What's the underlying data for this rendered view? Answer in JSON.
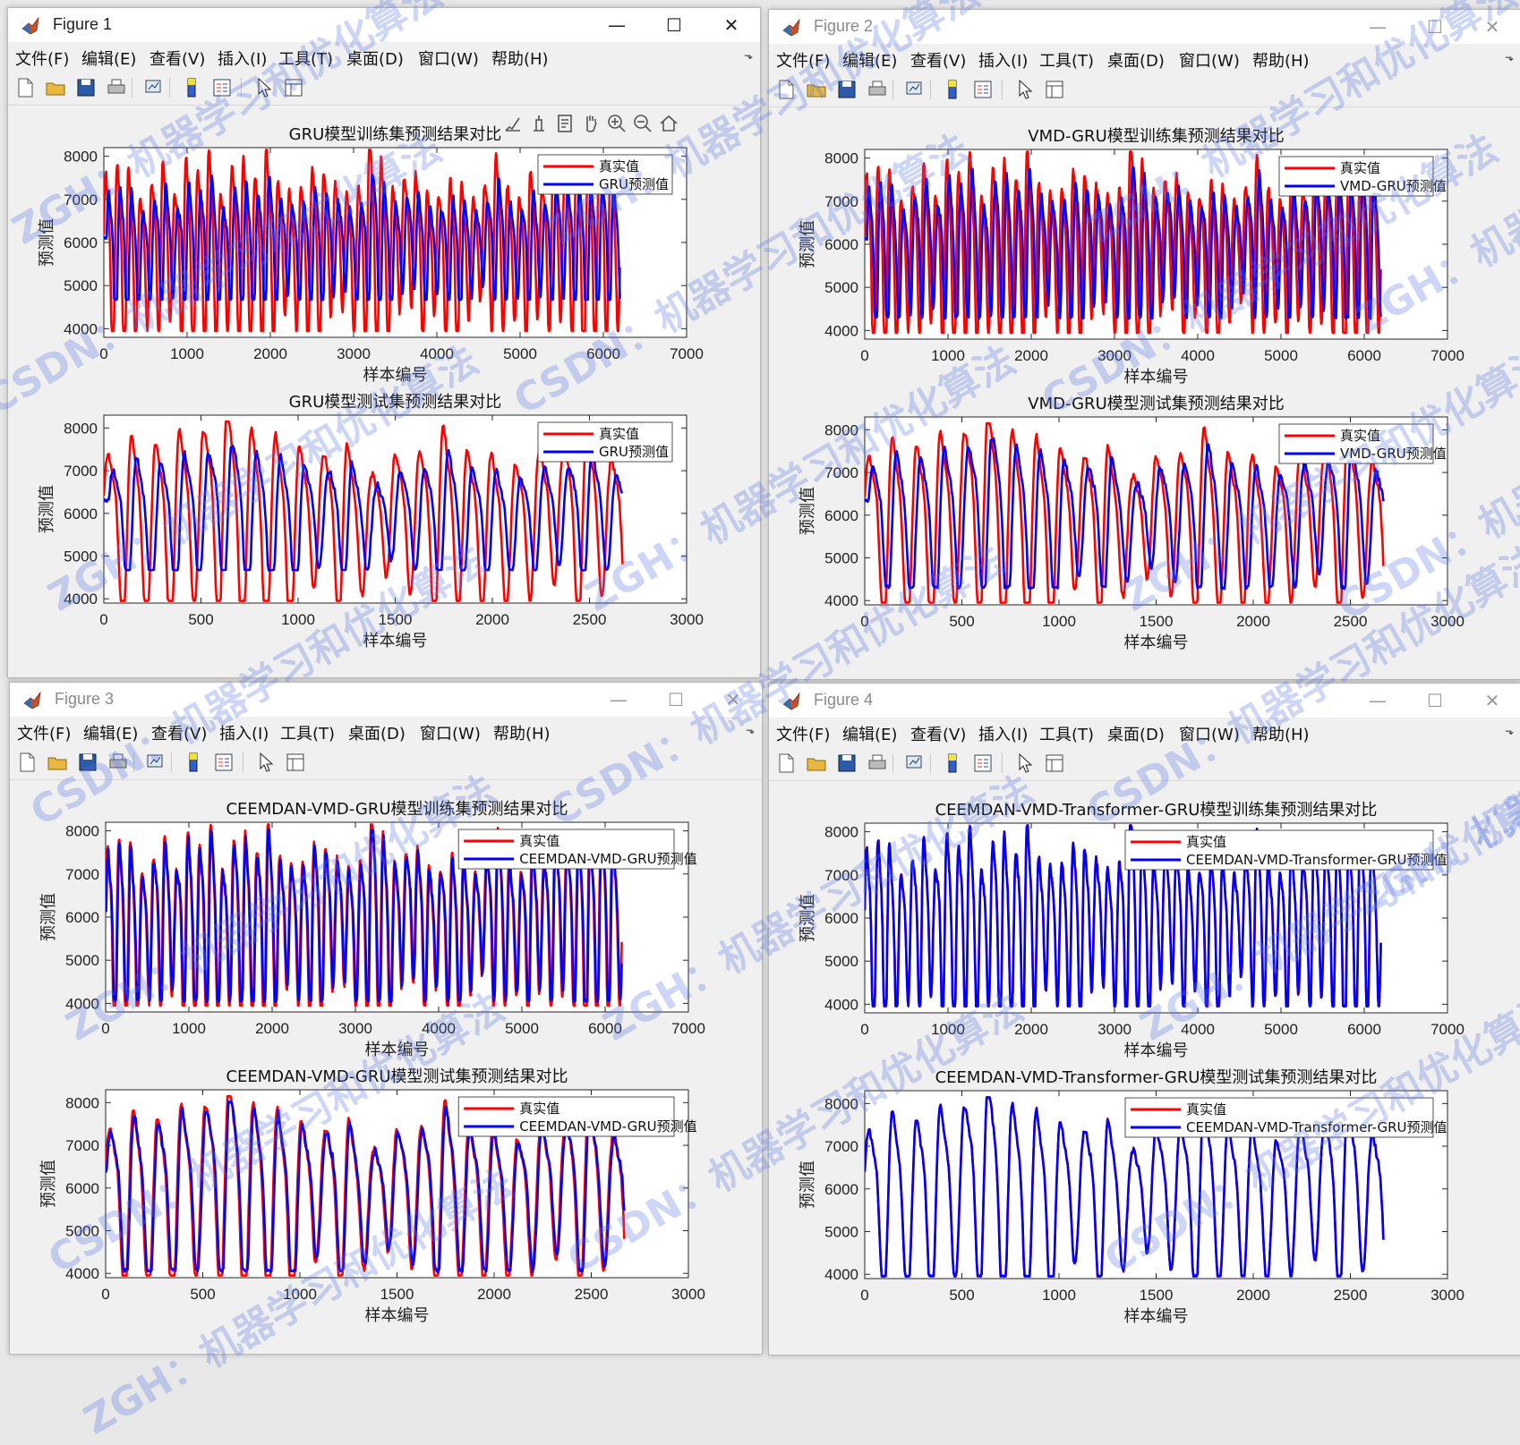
{
  "menu_labels": [
    "文件(F)",
    "编辑(E)",
    "查看(V)",
    "插入(I)",
    "工具(T)",
    "桌面(D)",
    "窗口(W)",
    "帮助(H)"
  ],
  "window_buttons": {
    "minimize": "—",
    "maximize": "☐",
    "close": "✕"
  },
  "figures": [
    {
      "title": "Figure 1",
      "active": true
    },
    {
      "title": "Figure 2",
      "active": false
    },
    {
      "title": "Figure 3",
      "active": false
    },
    {
      "title": "Figure 4",
      "active": false
    }
  ],
  "watermarks": [
    "ZGH：机器学习和优化算法",
    "CSDN：机器学习和优化算法"
  ],
  "colors": {
    "true_series": "#ff0000",
    "pred_series": "#0000ff",
    "axes_bg": "#ffffff",
    "figure_bg": "#f0f0f0"
  },
  "chart_data": [
    {
      "type": "line",
      "figure": 1,
      "panel": "train",
      "title": "GRU模型训练集预测结果对比",
      "xlabel": "样本编号",
      "ylabel": "预测值",
      "xlim": [
        0,
        7000
      ],
      "ylim": [
        3800,
        8200
      ],
      "xticks": [
        0,
        1000,
        2000,
        3000,
        4000,
        5000,
        6000,
        7000
      ],
      "yticks": [
        4000,
        5000,
        6000,
        7000,
        8000
      ],
      "x_end": 6200,
      "series": [
        {
          "name": "真实值",
          "color": "#ff0000"
        },
        {
          "name": "GRU预测值",
          "color": "#0000ff"
        }
      ],
      "legend": "top-right",
      "grid": false
    },
    {
      "type": "line",
      "figure": 1,
      "panel": "test",
      "title": "GRU模型测试集预测结果对比",
      "xlabel": "样本编号",
      "ylabel": "预测值",
      "xlim": [
        0,
        3000
      ],
      "ylim": [
        3900,
        8300
      ],
      "xticks": [
        0,
        500,
        1000,
        1500,
        2000,
        2500,
        3000
      ],
      "yticks": [
        4000,
        5000,
        6000,
        7000,
        8000
      ],
      "x_end": 2670,
      "series": [
        {
          "name": "真实值",
          "color": "#ff0000"
        },
        {
          "name": "GRU预测值",
          "color": "#0000ff"
        }
      ],
      "legend": "top-right",
      "grid": false
    },
    {
      "type": "line",
      "figure": 2,
      "panel": "train",
      "title": "VMD-GRU模型训练集预测结果对比",
      "xlabel": "样本编号",
      "ylabel": "预测值",
      "xlim": [
        0,
        7000
      ],
      "ylim": [
        3800,
        8200
      ],
      "xticks": [
        0,
        1000,
        2000,
        3000,
        4000,
        5000,
        6000,
        7000
      ],
      "yticks": [
        4000,
        5000,
        6000,
        7000,
        8000
      ],
      "x_end": 6200,
      "series": [
        {
          "name": "真实值",
          "color": "#ff0000"
        },
        {
          "name": "VMD-GRU预测值",
          "color": "#0000ff"
        }
      ],
      "legend": "top-right",
      "grid": false
    },
    {
      "type": "line",
      "figure": 2,
      "panel": "test",
      "title": "VMD-GRU模型测试集预测结果对比",
      "xlabel": "样本编号",
      "ylabel": "预测值",
      "xlim": [
        0,
        3000
      ],
      "ylim": [
        3900,
        8300
      ],
      "xticks": [
        0,
        500,
        1000,
        1500,
        2000,
        2500,
        3000
      ],
      "yticks": [
        4000,
        5000,
        6000,
        7000,
        8000
      ],
      "x_end": 2670,
      "series": [
        {
          "name": "真实值",
          "color": "#ff0000"
        },
        {
          "name": "VMD-GRU预测值",
          "color": "#0000ff"
        }
      ],
      "legend": "top-right",
      "grid": false
    },
    {
      "type": "line",
      "figure": 3,
      "panel": "train",
      "title": "CEEMDAN-VMD-GRU模型训练集预测结果对比",
      "xlabel": "样本编号",
      "ylabel": "预测值",
      "xlim": [
        0,
        7000
      ],
      "ylim": [
        3800,
        8200
      ],
      "xticks": [
        0,
        1000,
        2000,
        3000,
        4000,
        5000,
        6000,
        7000
      ],
      "yticks": [
        4000,
        5000,
        6000,
        7000,
        8000
      ],
      "x_end": 6200,
      "series": [
        {
          "name": "真实值",
          "color": "#ff0000"
        },
        {
          "name": "CEEMDAN-VMD-GRU预测值",
          "color": "#0000ff"
        }
      ],
      "legend": "top-right",
      "grid": false
    },
    {
      "type": "line",
      "figure": 3,
      "panel": "test",
      "title": "CEEMDAN-VMD-GRU模型测试集预测结果对比",
      "xlabel": "样本编号",
      "ylabel": "预测值",
      "xlim": [
        0,
        3000
      ],
      "ylim": [
        3900,
        8300
      ],
      "xticks": [
        0,
        500,
        1000,
        1500,
        2000,
        2500,
        3000
      ],
      "yticks": [
        4000,
        5000,
        6000,
        7000,
        8000
      ],
      "x_end": 2670,
      "series": [
        {
          "name": "真实值",
          "color": "#ff0000"
        },
        {
          "name": "CEEMDAN-VMD-GRU预测值",
          "color": "#0000ff"
        }
      ],
      "legend": "top-right",
      "grid": false
    },
    {
      "type": "line",
      "figure": 4,
      "panel": "train",
      "title": "CEEMDAN-VMD-Transformer-GRU模型训练集预测结果对比",
      "xlabel": "样本编号",
      "ylabel": "预测值",
      "xlim": [
        0,
        7000
      ],
      "ylim": [
        3800,
        8200
      ],
      "xticks": [
        0,
        1000,
        2000,
        3000,
        4000,
        5000,
        6000,
        7000
      ],
      "yticks": [
        4000,
        5000,
        6000,
        7000,
        8000
      ],
      "x_end": 6200,
      "series": [
        {
          "name": "真实值",
          "color": "#ff0000"
        },
        {
          "name": "CEEMDAN-VMD-Transformer-GRU预测值",
          "color": "#0000ff"
        }
      ],
      "legend": "top-right",
      "grid": false
    },
    {
      "type": "line",
      "figure": 4,
      "panel": "test",
      "title": "CEEMDAN-VMD-Transformer-GRU模型测试集预测结果对比",
      "xlabel": "样本编号",
      "ylabel": "预测值",
      "xlim": [
        0,
        3000
      ],
      "ylim": [
        3900,
        8300
      ],
      "xticks": [
        0,
        500,
        1000,
        1500,
        2000,
        2500,
        3000
      ],
      "yticks": [
        4000,
        5000,
        6000,
        7000,
        8000
      ],
      "x_end": 2670,
      "series": [
        {
          "name": "真实值",
          "color": "#ff0000"
        },
        {
          "name": "CEEMDAN-VMD-Transformer-GRU预测值",
          "color": "#0000ff"
        }
      ],
      "legend": "top-right",
      "grid": false
    }
  ]
}
